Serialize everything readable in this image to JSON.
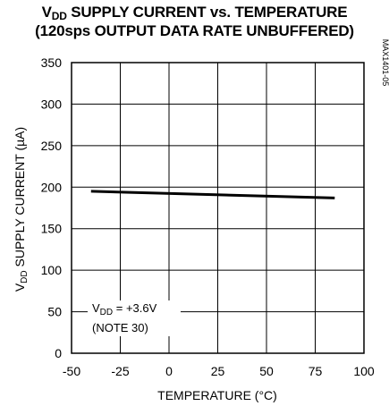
{
  "chart_data": {
    "type": "line",
    "title_line1_prefix": "V",
    "title_line1_sub": "DD",
    "title_line1_rest": " SUPPLY CURRENT vs. TEMPERATURE",
    "title_line2": "(120sps OUTPUT DATA RATE UNBUFFERED)",
    "xlabel": "TEMPERATURE (°C)",
    "ylabel_prefix": "V",
    "ylabel_sub": "DD",
    "ylabel_rest": " SUPPLY CURRENT (µA)",
    "xlim": [
      -50,
      100
    ],
    "ylim": [
      0,
      350
    ],
    "x_ticks": [
      "-50",
      "-25",
      "0",
      "25",
      "50",
      "75",
      "100"
    ],
    "y_ticks": [
      "0",
      "50",
      "100",
      "150",
      "200",
      "250",
      "300",
      "350"
    ],
    "grid": true,
    "series": [
      {
        "x": [
          -40,
          85
        ],
        "y": [
          195,
          187
        ]
      }
    ],
    "annotation_line1_prefix": "V",
    "annotation_line1_sub": "DD",
    "annotation_line1_rest": " = +3.6V",
    "annotation_line2": "(NOTE 30)",
    "figure_id": "MAX1401-05"
  }
}
